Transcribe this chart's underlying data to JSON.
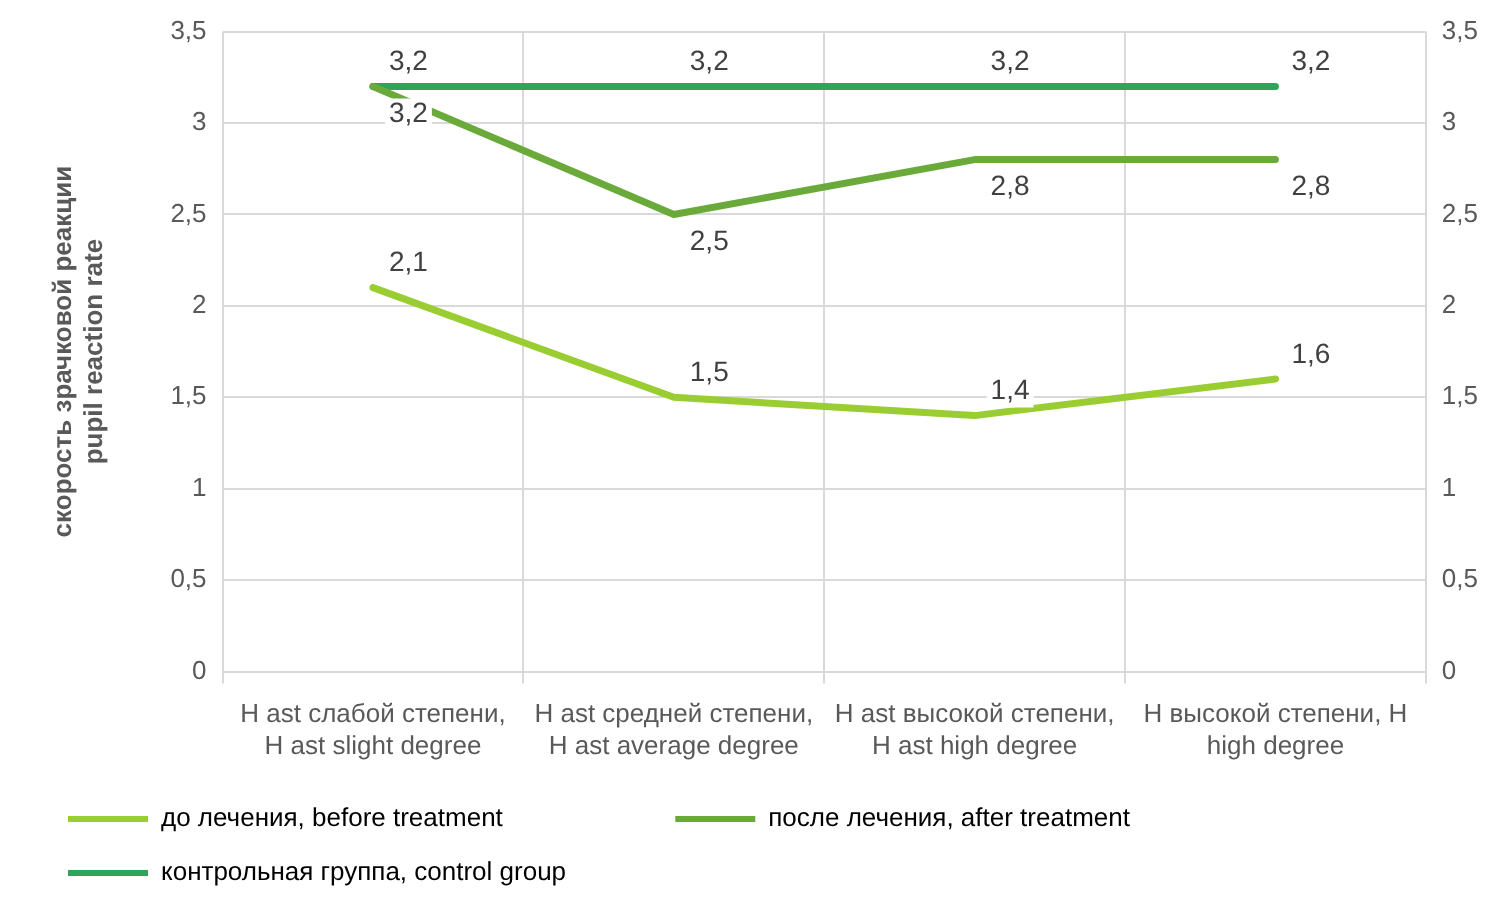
{
  "chart_data": {
    "type": "line",
    "ylabel": "скорость зрачковой реакции\npupil reaction rate",
    "categories": [
      "H ast слабой степени, H ast slight degree",
      "H ast средней степени, H ast average degree",
      "H ast высокой степени, H ast high degree",
      "H высокой степени, H high degree"
    ],
    "series": [
      {
        "name": "до лечения, before treatment",
        "color": "#9acd32",
        "values": [
          2.1,
          1.5,
          1.4,
          1.6
        ],
        "value_labels": [
          "2,1",
          "1,5",
          "1,4",
          "1,6"
        ]
      },
      {
        "name": "после лечения, after treatment",
        "color": "#6aaa3a",
        "values": [
          3.2,
          2.5,
          2.8,
          2.8
        ],
        "value_labels": [
          "3,2",
          "2,5",
          "2,8",
          "2,8"
        ]
      },
      {
        "name": "контрольная группа, control group",
        "color": "#2ea55a",
        "values": [
          3.2,
          3.2,
          3.2,
          3.2
        ],
        "value_labels": [
          "3,2",
          "3,2",
          "3,2",
          "3,2"
        ]
      }
    ],
    "ylim": [
      0,
      3.5
    ],
    "yticks": [
      0,
      {
        "value": 0.5,
        "label": "0,5"
      },
      1,
      {
        "value": 1.5,
        "label": "1,5"
      },
      2,
      {
        "value": 2.5,
        "label": "2,5"
      },
      3,
      {
        "value": 3.5,
        "label": "3,5"
      }
    ],
    "y2lim": [
      0,
      3.5
    ],
    "y2ticks": [
      0,
      {
        "value": 0.5,
        "label": "0,5"
      },
      1,
      {
        "value": 1.5,
        "label": "1,5"
      },
      2,
      {
        "value": 2.5,
        "label": "2,5"
      },
      3,
      {
        "value": 3.5,
        "label": "3,5"
      }
    ],
    "grid": true,
    "legend": "bottom",
    "marker": "none",
    "line_style": "solid"
  }
}
